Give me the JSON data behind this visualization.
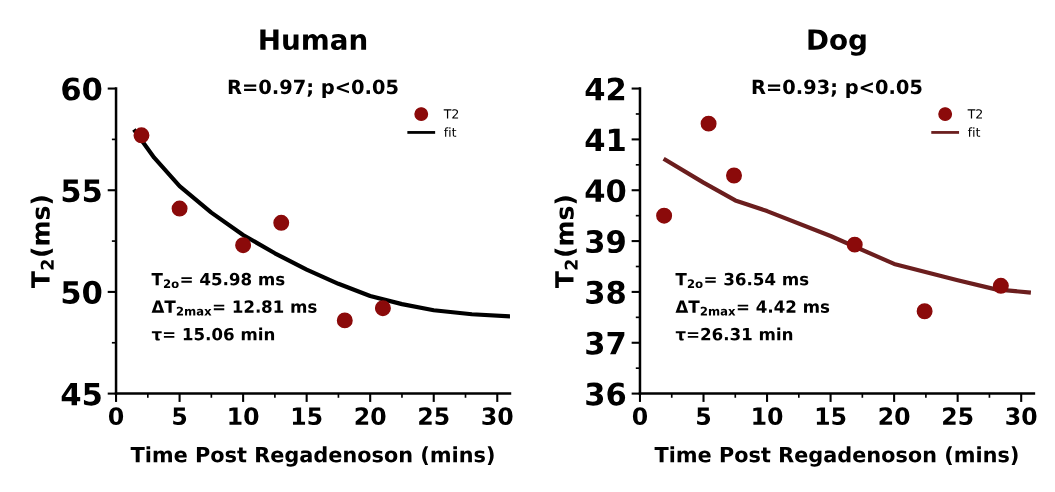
{
  "chart_data": [
    {
      "type": "scatter",
      "title": "Human",
      "xlabel": "Time Post Regadenoson (mins)",
      "ylabel": "T$_{2}$(ms)",
      "xlim": [
        0,
        31
      ],
      "ylim": [
        45,
        60
      ],
      "xticks": [
        0,
        5,
        10,
        15,
        20,
        25,
        30
      ],
      "yticks": [
        45,
        50,
        55,
        60
      ],
      "legend": "top right",
      "grid": false,
      "annotations": [
        "R=0.97; p<0.05",
        "T$_{2o}$= 45.98 ms",
        "ΔT$_{2max}$= 12.81 ms",
        "τ= 15.06 min"
      ],
      "series": [
        {
          "name": "T2",
          "marker": "circle",
          "color": "#8b0a0a",
          "x": [
            2,
            5,
            10,
            13,
            18,
            21
          ],
          "values": [
            57.7,
            54.1,
            52.3,
            53.4,
            48.6,
            49.2
          ]
        },
        {
          "name": "fit",
          "type": "line",
          "marker": "none",
          "color": "#000000",
          "x": [
            1.5,
            3,
            5,
            7.5,
            10,
            12.5,
            15,
            17.5,
            20,
            22.5,
            25,
            28,
            31
          ],
          "values": [
            57.9,
            56.6,
            55.2,
            53.9,
            52.8,
            51.9,
            51.1,
            50.4,
            49.8,
            49.4,
            49.1,
            48.9,
            48.8
          ]
        }
      ]
    },
    {
      "type": "scatter",
      "title": "Dog",
      "xlabel": "Time Post Regadenoson (mins)",
      "ylabel": "T$_{2}$(ms)",
      "xlim": [
        0,
        31
      ],
      "ylim": [
        36,
        42
      ],
      "xticks": [
        0,
        5,
        10,
        15,
        20,
        25,
        30
      ],
      "yticks": [
        36,
        37,
        38,
        39,
        40,
        41,
        42
      ],
      "legend": "top right",
      "grid": false,
      "annotations": [
        "R=0.93; p<0.05",
        "T$_{2o}$= 36.54 ms",
        "ΔT$_{2max}$= 4.42 ms",
        "τ=26.31 min"
      ],
      "series": [
        {
          "name": "T2",
          "marker": "circle",
          "color": "#8b0a0a",
          "x": [
            1.9,
            5.4,
            7.4,
            16.9,
            22.4,
            28.4
          ],
          "values": [
            39.5,
            41.31,
            40.29,
            38.93,
            37.62,
            38.12
          ]
        },
        {
          "name": "fit",
          "type": "line",
          "marker": "none",
          "color": "#6b1e1e",
          "x": [
            2,
            5,
            7.5,
            10,
            15,
            20,
            25,
            28,
            30.6
          ],
          "values": [
            40.6,
            40.15,
            39.8,
            39.59,
            39.1,
            38.55,
            38.23,
            38.05,
            37.99
          ]
        }
      ]
    }
  ]
}
